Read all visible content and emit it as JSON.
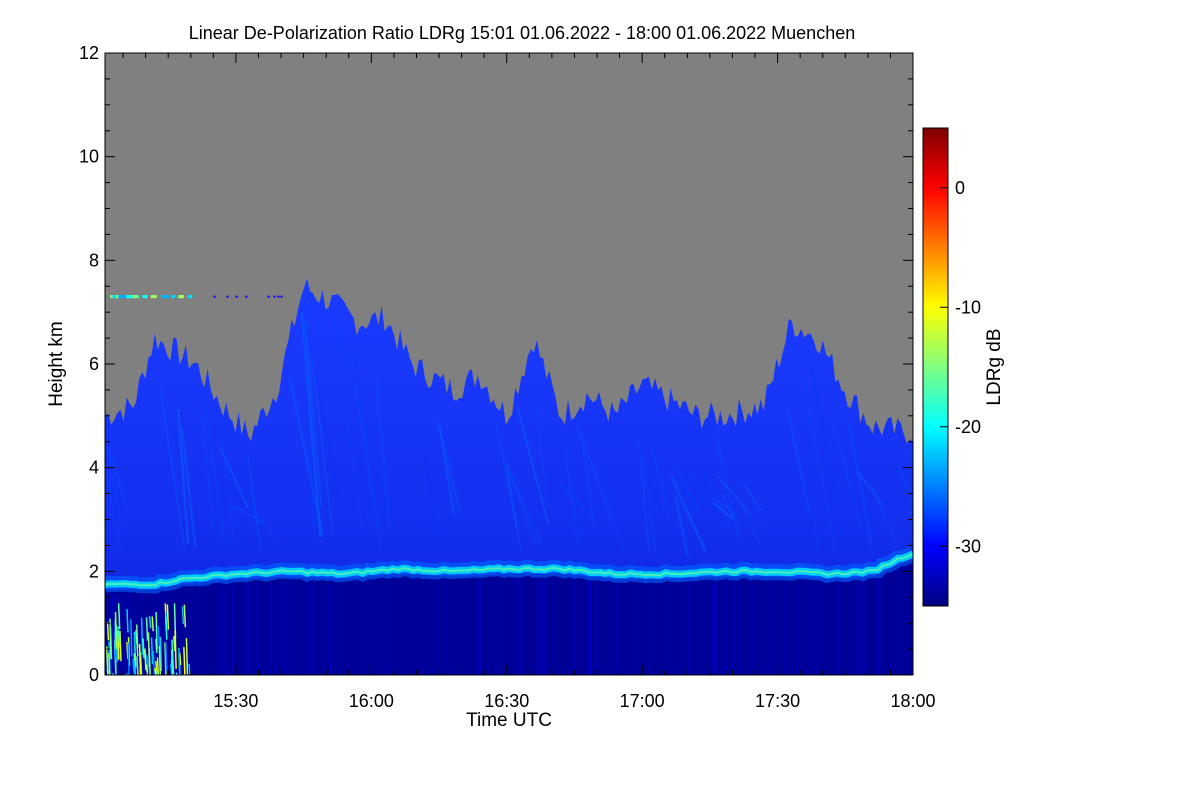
{
  "chart_data": {
    "type": "heatmap",
    "title": "Linear De-Polarization Ratio LDRg   15:01 01.06.2022 - 18:00 01.06.2022 Muenchen",
    "xlabel": "Time UTC",
    "ylabel": "Height km",
    "x_range": [
      "15:01",
      "18:00"
    ],
    "x_ticks": [
      {
        "value": 15.5,
        "label": "15:30"
      },
      {
        "value": 16.0,
        "label": "16:00"
      },
      {
        "value": 16.5,
        "label": "16:30"
      },
      {
        "value": 17.0,
        "label": "17:00"
      },
      {
        "value": 17.5,
        "label": "17:30"
      },
      {
        "value": 18.0,
        "label": "18:00"
      }
    ],
    "ylim": [
      0,
      12
    ],
    "y_ticks": [
      {
        "value": 0,
        "label": "0"
      },
      {
        "value": 2,
        "label": "2"
      },
      {
        "value": 4,
        "label": "4"
      },
      {
        "value": 6,
        "label": "6"
      },
      {
        "value": 8,
        "label": "8"
      },
      {
        "value": 10,
        "label": "10"
      },
      {
        "value": 12,
        "label": "12"
      }
    ],
    "colorbar": {
      "label": "LDRg dB",
      "range": [
        -35,
        5
      ],
      "ticks": [
        {
          "value": 0,
          "label": "0"
        },
        {
          "value": -10,
          "label": "-10"
        },
        {
          "value": -20,
          "label": "-20"
        },
        {
          "value": -30,
          "label": "-30"
        }
      ],
      "colors": [
        "#00007f",
        "#0000ff",
        "#007fff",
        "#00ffff",
        "#7fff7f",
        "#ffff00",
        "#ff7f00",
        "#ff0000",
        "#7f0000"
      ]
    },
    "background_color": "#808080",
    "features": {
      "cloud_top_km": [
        [
          15.02,
          5.0
        ],
        [
          15.12,
          5.2
        ],
        [
          15.2,
          6.5
        ],
        [
          15.35,
          6.0
        ],
        [
          15.45,
          5.2
        ],
        [
          15.55,
          4.6
        ],
        [
          15.65,
          5.5
        ],
        [
          15.75,
          7.5
        ],
        [
          15.85,
          7.2
        ],
        [
          15.95,
          6.8
        ],
        [
          16.05,
          6.9
        ],
        [
          16.15,
          6.0
        ],
        [
          16.3,
          5.5
        ],
        [
          16.4,
          5.8
        ],
        [
          16.5,
          5.0
        ],
        [
          16.6,
          6.5
        ],
        [
          16.7,
          5.0
        ],
        [
          16.8,
          5.4
        ],
        [
          16.9,
          5.0
        ],
        [
          17.0,
          5.6
        ],
        [
          17.1,
          5.3
        ],
        [
          17.2,
          5.0
        ],
        [
          17.3,
          5.0
        ],
        [
          17.45,
          5.2
        ],
        [
          17.55,
          6.8
        ],
        [
          17.65,
          6.5
        ],
        [
          17.75,
          5.5
        ],
        [
          17.85,
          4.8
        ],
        [
          17.95,
          4.7
        ],
        [
          18.0,
          4.7
        ]
      ],
      "aerosol_layer_km": [
        [
          15.02,
          1.75
        ],
        [
          15.2,
          1.75
        ],
        [
          15.3,
          1.85
        ],
        [
          15.5,
          1.95
        ],
        [
          15.7,
          2.0
        ],
        [
          15.9,
          1.95
        ],
        [
          16.1,
          2.05
        ],
        [
          16.3,
          2.0
        ],
        [
          16.5,
          2.05
        ],
        [
          16.7,
          2.05
        ],
        [
          16.9,
          1.95
        ],
        [
          17.1,
          1.95
        ],
        [
          17.3,
          2.0
        ],
        [
          17.5,
          2.0
        ],
        [
          17.7,
          1.95
        ],
        [
          17.85,
          2.0
        ],
        [
          17.95,
          2.25
        ],
        [
          18.0,
          2.35
        ]
      ],
      "aerosol_layer_ldr_db": -22,
      "cloud_ldr_db": -30,
      "boundary_layer_ldr_db": -34,
      "near_ground_max_ldr_db": -10,
      "thin_layer_km": 7.3
    }
  }
}
